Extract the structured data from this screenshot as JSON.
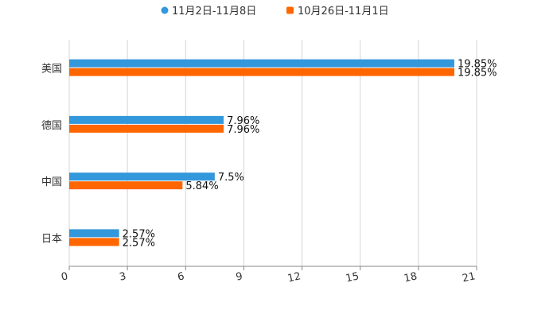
{
  "chart_data": {
    "type": "bar",
    "orientation": "horizontal",
    "categories": [
      "美国",
      "德国",
      "中国",
      "日本"
    ],
    "series": [
      {
        "name": "11月2日-11月8日",
        "color": "#3398db",
        "values": [
          19.85,
          7.96,
          7.5,
          2.57
        ],
        "labels": [
          "19.85%",
          "7.96%",
          "7.5%",
          "2.57%"
        ]
      },
      {
        "name": "10月26日-11月1日",
        "color": "#ff6600",
        "values": [
          19.85,
          7.96,
          5.84,
          2.57
        ],
        "labels": [
          "19.85%",
          "7.96%",
          "5.84%",
          "2.57%"
        ]
      }
    ],
    "xlim": [
      0,
      21
    ],
    "xticks": [
      0,
      3,
      6,
      9,
      12,
      15,
      18,
      21
    ],
    "grid": true,
    "legend": "top-center",
    "title": "",
    "xlabel": "",
    "ylabel": ""
  }
}
